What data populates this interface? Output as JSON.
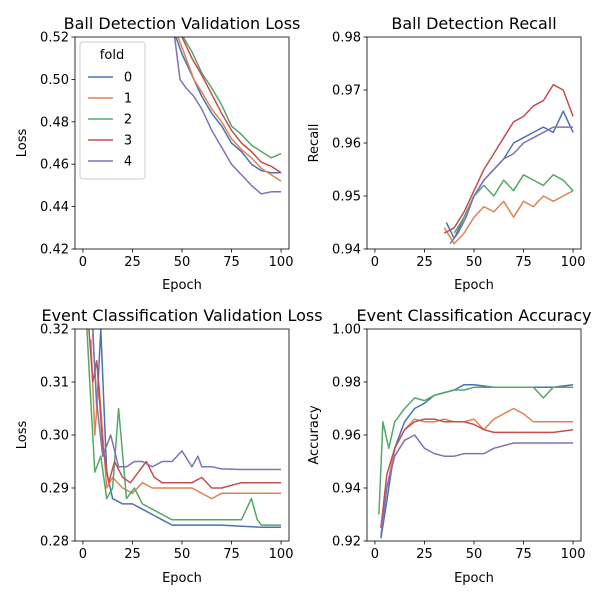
{
  "chart_data": [
    {
      "type": "line",
      "title": "Ball Detection Validation Loss",
      "xlabel": "Epoch",
      "ylabel": "Loss",
      "xlim": [
        -4,
        104
      ],
      "ylim": [
        0.42,
        0.52
      ],
      "xticks": [
        "0",
        "25",
        "50",
        "75",
        "100"
      ],
      "yticks": [
        "0.42",
        "0.44",
        "0.46",
        "0.48",
        "0.50",
        "0.52"
      ],
      "legend": {
        "title": "fold",
        "placement": "top-left"
      },
      "series": [
        {
          "name": "0",
          "color": "#4c72b0",
          "x": [
            45,
            50,
            55,
            60,
            65,
            70,
            75,
            80,
            85,
            90,
            95,
            100
          ],
          "y": [
            0.525,
            0.512,
            0.502,
            0.492,
            0.484,
            0.478,
            0.47,
            0.466,
            0.46,
            0.457,
            0.456,
            0.456
          ]
        },
        {
          "name": "1",
          "color": "#dd8452",
          "x": [
            48,
            52,
            56,
            60,
            65,
            70,
            75,
            80,
            85,
            90,
            95,
            100
          ],
          "y": [
            0.52,
            0.51,
            0.5,
            0.494,
            0.486,
            0.48,
            0.472,
            0.467,
            0.463,
            0.458,
            0.455,
            0.452
          ]
        },
        {
          "name": "2",
          "color": "#55a868",
          "x": [
            50,
            55,
            60,
            65,
            70,
            75,
            80,
            85,
            90,
            95,
            100
          ],
          "y": [
            0.521,
            0.513,
            0.503,
            0.496,
            0.488,
            0.478,
            0.474,
            0.469,
            0.466,
            0.463,
            0.465
          ]
        },
        {
          "name": "3",
          "color": "#c44e52",
          "x": [
            50,
            55,
            60,
            65,
            70,
            75,
            80,
            85,
            90,
            95,
            100
          ],
          "y": [
            0.52,
            0.51,
            0.502,
            0.493,
            0.484,
            0.476,
            0.47,
            0.466,
            0.461,
            0.459,
            0.456
          ]
        },
        {
          "name": "4",
          "color": "#8172b3",
          "x": [
            46,
            49,
            52,
            56,
            60,
            65,
            70,
            75,
            80,
            85,
            90,
            95,
            100
          ],
          "y": [
            0.522,
            0.5,
            0.496,
            0.492,
            0.486,
            0.476,
            0.468,
            0.46,
            0.455,
            0.45,
            0.446,
            0.447,
            0.447
          ]
        }
      ]
    },
    {
      "type": "line",
      "title": "Ball Detection Recall",
      "xlabel": "Epoch",
      "ylabel": "Recall",
      "xlim": [
        -4,
        104
      ],
      "ylim": [
        0.94,
        0.98
      ],
      "xticks": [
        "0",
        "25",
        "50",
        "75",
        "100"
      ],
      "yticks": [
        "0.94",
        "0.95",
        "0.96",
        "0.97",
        "0.98"
      ],
      "series": [
        {
          "name": "0",
          "color": "#4c72b0",
          "x": [
            36,
            40,
            45,
            50,
            55,
            60,
            65,
            70,
            75,
            80,
            85,
            90,
            95,
            100
          ],
          "y": [
            0.945,
            0.942,
            0.946,
            0.95,
            0.953,
            0.955,
            0.957,
            0.96,
            0.961,
            0.962,
            0.963,
            0.962,
            0.966,
            0.962
          ]
        },
        {
          "name": "1",
          "color": "#dd8452",
          "x": [
            35,
            40,
            45,
            50,
            55,
            60,
            65,
            70,
            75,
            80,
            85,
            90,
            95,
            100
          ],
          "y": [
            0.944,
            0.941,
            0.943,
            0.946,
            0.948,
            0.947,
            0.949,
            0.946,
            0.949,
            0.948,
            0.95,
            0.949,
            0.95,
            0.951
          ]
        },
        {
          "name": "2",
          "color": "#55a868",
          "x": [
            40,
            45,
            50,
            55,
            60,
            65,
            70,
            75,
            80,
            85,
            90,
            95,
            100
          ],
          "y": [
            0.943,
            0.946,
            0.95,
            0.952,
            0.95,
            0.953,
            0.951,
            0.954,
            0.953,
            0.952,
            0.954,
            0.953,
            0.951
          ]
        },
        {
          "name": "3",
          "color": "#c44e52",
          "x": [
            35,
            40,
            45,
            50,
            55,
            60,
            65,
            70,
            75,
            80,
            85,
            90,
            95,
            100
          ],
          "y": [
            0.943,
            0.944,
            0.947,
            0.951,
            0.955,
            0.958,
            0.961,
            0.964,
            0.965,
            0.967,
            0.968,
            0.971,
            0.97,
            0.965
          ]
        },
        {
          "name": "4",
          "color": "#8172b3",
          "x": [
            38,
            42,
            46,
            50,
            55,
            60,
            65,
            70,
            75,
            80,
            85,
            90,
            95,
            100
          ],
          "y": [
            0.941,
            0.943,
            0.946,
            0.95,
            0.953,
            0.955,
            0.957,
            0.958,
            0.96,
            0.961,
            0.962,
            0.963,
            0.963,
            0.963
          ]
        }
      ]
    },
    {
      "type": "line",
      "title": "Event Classification Validation Loss",
      "xlabel": "Epoch",
      "ylabel": "Loss",
      "xlim": [
        -4,
        104
      ],
      "ylim": [
        0.28,
        0.32
      ],
      "xticks": [
        "0",
        "25",
        "50",
        "75",
        "100"
      ],
      "yticks": [
        "0.28",
        "0.29",
        "0.30",
        "0.31",
        "0.32"
      ],
      "series": [
        {
          "name": "0",
          "color": "#4c72b0",
          "x": [
            5,
            7,
            9,
            12,
            15,
            20,
            25,
            30,
            35,
            40,
            45,
            50,
            60,
            70,
            80,
            90,
            100
          ],
          "y": [
            0.32,
            0.305,
            0.32,
            0.293,
            0.288,
            0.287,
            0.287,
            0.286,
            0.285,
            0.284,
            0.283,
            0.283,
            0.283,
            0.283,
            0.2828,
            0.2826,
            0.2826
          ]
        },
        {
          "name": "1",
          "color": "#dd8452",
          "x": [
            4,
            6,
            8,
            12,
            15,
            20,
            25,
            30,
            35,
            40,
            45,
            50,
            55,
            60,
            65,
            70,
            75,
            80,
            90,
            100
          ],
          "y": [
            0.318,
            0.3,
            0.31,
            0.29,
            0.292,
            0.29,
            0.289,
            0.291,
            0.29,
            0.29,
            0.29,
            0.29,
            0.29,
            0.289,
            0.288,
            0.289,
            0.289,
            0.289,
            0.289,
            0.289
          ]
        },
        {
          "name": "2",
          "color": "#55a868",
          "x": [
            2,
            4,
            6,
            9,
            12,
            15,
            18,
            22,
            26,
            30,
            35,
            40,
            45,
            50,
            55,
            60,
            70,
            80,
            85,
            88,
            90,
            95,
            100
          ],
          "y": [
            0.32,
            0.306,
            0.293,
            0.296,
            0.288,
            0.29,
            0.305,
            0.288,
            0.29,
            0.287,
            0.286,
            0.285,
            0.284,
            0.284,
            0.284,
            0.284,
            0.284,
            0.284,
            0.288,
            0.284,
            0.283,
            0.283,
            0.283
          ]
        },
        {
          "name": "3",
          "color": "#c44e52",
          "x": [
            3,
            5,
            7,
            10,
            13,
            16,
            20,
            24,
            28,
            32,
            36,
            40,
            45,
            50,
            55,
            60,
            65,
            70,
            80,
            90,
            100
          ],
          "y": [
            0.32,
            0.31,
            0.314,
            0.298,
            0.291,
            0.295,
            0.292,
            0.291,
            0.293,
            0.295,
            0.292,
            0.291,
            0.291,
            0.291,
            0.291,
            0.292,
            0.29,
            0.29,
            0.291,
            0.291,
            0.291
          ]
        },
        {
          "name": "4",
          "color": "#8172b3",
          "x": [
            5,
            7,
            10,
            14,
            18,
            22,
            26,
            30,
            35,
            40,
            45,
            50,
            55,
            58,
            60,
            65,
            70,
            80,
            90,
            100
          ],
          "y": [
            0.319,
            0.306,
            0.296,
            0.3,
            0.294,
            0.294,
            0.295,
            0.295,
            0.294,
            0.295,
            0.295,
            0.297,
            0.294,
            0.296,
            0.294,
            0.294,
            0.2936,
            0.2935,
            0.2935,
            0.2935
          ]
        }
      ]
    },
    {
      "type": "line",
      "title": "Event Classification Accuracy",
      "xlabel": "Epoch",
      "ylabel": "Accuracy",
      "xlim": [
        -4,
        104
      ],
      "ylim": [
        0.92,
        1.0
      ],
      "xticks": [
        "0",
        "25",
        "50",
        "75",
        "100"
      ],
      "yticks": [
        "0.92",
        "0.94",
        "0.96",
        "0.98",
        "1.00"
      ],
      "series": [
        {
          "name": "0",
          "color": "#4c72b0",
          "x": [
            3,
            6,
            10,
            15,
            20,
            25,
            30,
            35,
            40,
            45,
            50,
            60,
            70,
            80,
            90,
            100
          ],
          "y": [
            0.921,
            0.935,
            0.955,
            0.965,
            0.97,
            0.972,
            0.975,
            0.976,
            0.977,
            0.979,
            0.979,
            0.978,
            0.978,
            0.978,
            0.978,
            0.979
          ]
        },
        {
          "name": "1",
          "color": "#dd8452",
          "x": [
            3,
            6,
            10,
            15,
            20,
            25,
            30,
            35,
            40,
            45,
            50,
            55,
            60,
            65,
            70,
            75,
            80,
            90,
            100
          ],
          "y": [
            0.925,
            0.94,
            0.955,
            0.962,
            0.966,
            0.965,
            0.965,
            0.966,
            0.965,
            0.965,
            0.966,
            0.962,
            0.966,
            0.968,
            0.97,
            0.968,
            0.965,
            0.965,
            0.965
          ]
        },
        {
          "name": "2",
          "color": "#55a868",
          "x": [
            2,
            4,
            7,
            10,
            15,
            20,
            25,
            30,
            35,
            40,
            45,
            50,
            55,
            60,
            70,
            80,
            85,
            90,
            100
          ],
          "y": [
            0.93,
            0.965,
            0.955,
            0.965,
            0.97,
            0.974,
            0.973,
            0.975,
            0.976,
            0.977,
            0.977,
            0.978,
            0.978,
            0.978,
            0.978,
            0.978,
            0.974,
            0.978,
            0.978
          ]
        },
        {
          "name": "3",
          "color": "#c44e52",
          "x": [
            3,
            6,
            10,
            15,
            20,
            25,
            30,
            35,
            40,
            45,
            50,
            55,
            60,
            70,
            80,
            90,
            100
          ],
          "y": [
            0.925,
            0.945,
            0.955,
            0.962,
            0.965,
            0.966,
            0.966,
            0.965,
            0.965,
            0.965,
            0.964,
            0.962,
            0.961,
            0.961,
            0.961,
            0.961,
            0.962
          ]
        },
        {
          "name": "4",
          "color": "#8172b3",
          "x": [
            3,
            6,
            10,
            15,
            20,
            25,
            30,
            35,
            40,
            45,
            50,
            55,
            60,
            65,
            70,
            80,
            90,
            100
          ],
          "y": [
            0.922,
            0.94,
            0.952,
            0.958,
            0.96,
            0.955,
            0.953,
            0.952,
            0.952,
            0.953,
            0.953,
            0.953,
            0.955,
            0.956,
            0.957,
            0.957,
            0.957,
            0.957
          ]
        }
      ]
    }
  ]
}
